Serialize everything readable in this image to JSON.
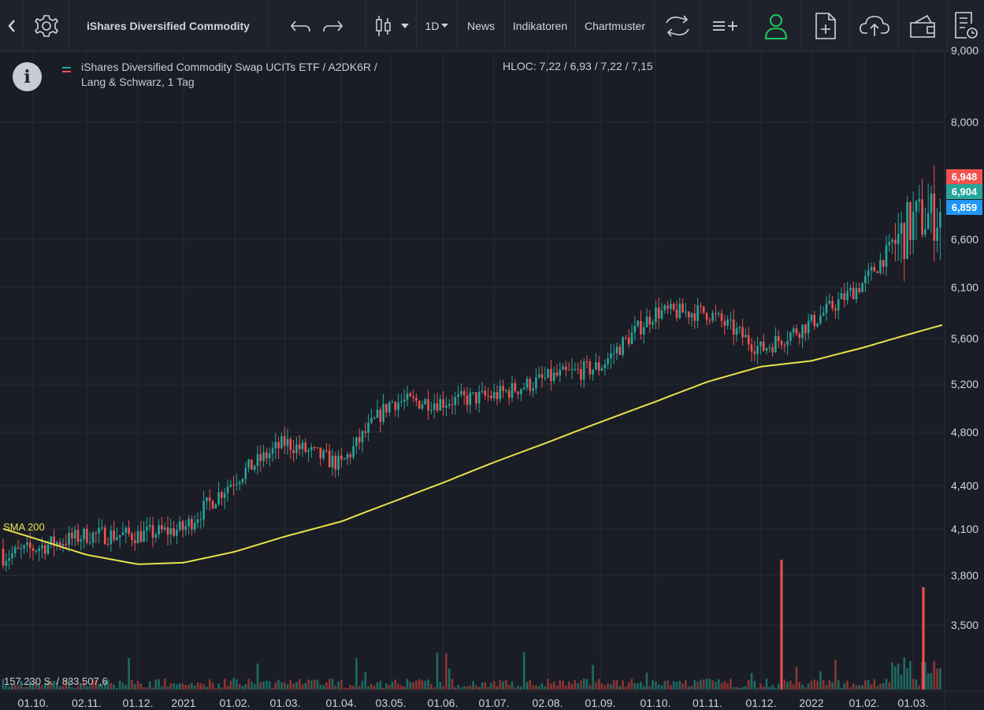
{
  "toolbar": {
    "instrument": "iShares Diversified Commodity",
    "interval": "1D",
    "news": "News",
    "indicators": "Indikatoren",
    "patterns": "Chartmuster",
    "icons": [
      "back-icon",
      "settings-icon",
      "undo-icon",
      "redo-icon",
      "candlestick-icon",
      "dropdown-icon",
      "compare-icon",
      "add-indicator-icon",
      "user-icon",
      "new-document-icon",
      "cloud-upload-icon",
      "wallet-icon",
      "report-icon"
    ],
    "user_color": "#22c55e"
  },
  "legend": {
    "line1": "iShares Diversified Commodity Swap UCITs ETF / A2DK6R /",
    "line2": "Lang & Schwarz, 1 Tag",
    "hloc": "HLOC: 7,22 / 6,93 / 7,22 / 7,15"
  },
  "volume_label": "157.230 S. / 833.507,6",
  "sma_label": "SMA 200",
  "price_tags": [
    {
      "text": "6,948",
      "color": "#ef5350"
    },
    {
      "text": "6,904",
      "color": "#26a69a"
    },
    {
      "text": "6,859",
      "color": "#2196f3"
    }
  ],
  "chart_data": {
    "type": "line",
    "scale": "log",
    "y_ticks": [
      "3,500",
      "3,800",
      "4,100",
      "4,400",
      "4,800",
      "5,200",
      "5,600",
      "6,100",
      "6,600",
      "8,000",
      "9,000"
    ],
    "x_ticks": [
      "01.10.",
      "02.11.",
      "01.12.",
      "2021",
      "01.02.",
      "01.03.",
      "01.04.",
      "03.05.",
      "01.06.",
      "01.07.",
      "02.08.",
      "01.09.",
      "01.10.",
      "01.11.",
      "01.12.",
      "2022",
      "01.02.",
      "01.03."
    ],
    "series": [
      {
        "name": "iShares Diversified Commodity Swap UCITs ETF",
        "color": "#26a69a",
        "down_color": "#ef5350",
        "x": [
          "01.10.",
          "02.11.",
          "01.12.",
          "2021",
          "01.02.",
          "01.03.",
          "01.04.",
          "03.05.",
          "01.06.",
          "01.07.",
          "02.08.",
          "01.09.",
          "01.10.",
          "01.11.",
          "01.12.",
          "2022",
          "01.02.",
          "01.03.",
          "end"
        ],
        "values": [
          3.97,
          4.06,
          4.06,
          4.1,
          4.45,
          4.72,
          4.55,
          5.05,
          5.05,
          5.1,
          5.25,
          5.35,
          5.85,
          5.85,
          5.5,
          5.75,
          6.15,
          6.8,
          6.9
        ]
      },
      {
        "name": "SMA 200",
        "color": "#e8e34a",
        "x": [
          "01.10.",
          "02.11.",
          "01.12.",
          "2021",
          "01.02.",
          "01.03.",
          "01.04.",
          "03.05.",
          "01.06.",
          "01.07.",
          "02.08.",
          "01.09.",
          "01.10.",
          "01.11.",
          "01.12.",
          "2022",
          "01.02.",
          "01.03.",
          "end"
        ],
        "values": [
          4.04,
          3.93,
          3.87,
          3.88,
          3.95,
          4.05,
          4.15,
          4.28,
          4.42,
          4.57,
          4.72,
          4.88,
          5.05,
          5.22,
          5.35,
          5.4,
          5.52,
          5.65,
          5.73
        ]
      }
    ],
    "volume_spikes": [
      {
        "x": "01.12.",
        "value": "high",
        "color": "#ef5350"
      },
      {
        "x": "01.03.",
        "value": "high",
        "color": "#ef5350"
      }
    ],
    "grid": true
  }
}
